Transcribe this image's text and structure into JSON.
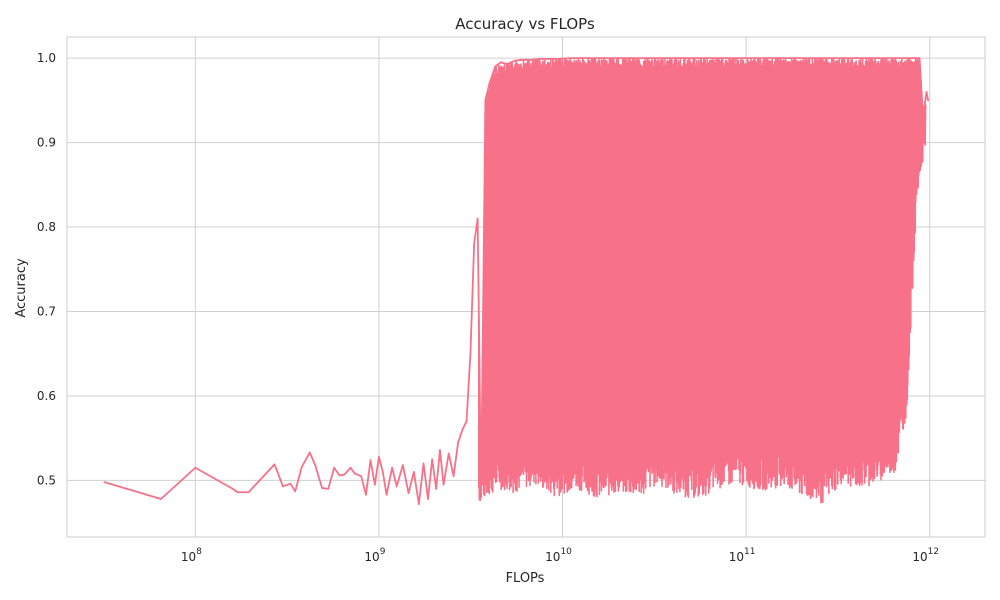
{
  "chart_data": {
    "type": "line",
    "title": "Accuracy vs FLOPs",
    "xlabel": "FLOPs",
    "ylabel": "Accuracy",
    "xscale": "log",
    "xlim": [
      20000000,
      2000000000000
    ],
    "ylim": [
      0.433,
      1.025
    ],
    "x_ticks": [
      {
        "value": 100000000,
        "base": "10",
        "exp": "8"
      },
      {
        "value": 1000000000,
        "base": "10",
        "exp": "9"
      },
      {
        "value": 10000000000,
        "base": "10",
        "exp": "10"
      },
      {
        "value": 100000000000,
        "base": "10",
        "exp": "11"
      },
      {
        "value": 1000000000000,
        "base": "10",
        "exp": "12"
      }
    ],
    "y_ticks": [
      {
        "value": 0.5,
        "label": "0.5"
      },
      {
        "value": 0.6,
        "label": "0.6"
      },
      {
        "value": 0.7,
        "label": "0.7"
      },
      {
        "value": 0.8,
        "label": "0.8"
      },
      {
        "value": 0.9,
        "label": "0.9"
      },
      {
        "value": 1.0,
        "label": "1.0"
      }
    ],
    "grid": true,
    "series": [
      {
        "color": "#f77189",
        "x": [
          32000000,
          65000000,
          100000000,
          160000000,
          170000000,
          195000000,
          270000000,
          300000000,
          330000000,
          350000000,
          380000000,
          420000000,
          450000000,
          490000000,
          530000000,
          570000000,
          610000000,
          650000000,
          700000000,
          740000000,
          800000000,
          850000000,
          900000000,
          950000000,
          1000000000,
          1050000000,
          1100000000,
          1180000000,
          1250000000,
          1350000000,
          1450000000,
          1550000000,
          1650000000,
          1750000000,
          1850000000,
          1950000000,
          2050000000,
          2150000000,
          2250000000,
          2400000000,
          2550000000,
          2700000000,
          2850000000,
          3000000000,
          3150000000,
          3300000000,
          3450000000,
          3600000000,
          3800000000,
          4000000000,
          4300000000,
          4600000000,
          5000000000,
          5500000000,
          6000000000,
          6800000000,
          7500000000,
          8500000000,
          9500000000,
          11000000000,
          12500000000,
          14000000000,
          16000000000,
          18000000000,
          20000000000,
          23000000000,
          26000000000,
          30000000000,
          34000000000,
          38000000000,
          43000000000,
          48000000000,
          55000000000,
          62000000000,
          70000000000,
          78000000000,
          88000000000,
          100000000000,
          115000000000,
          130000000000,
          150000000000,
          170000000000,
          195000000000,
          220000000000,
          250000000000,
          280000000000,
          320000000000,
          360000000000,
          410000000000,
          460000000000,
          520000000000,
          580000000000,
          650000000000,
          720000000000,
          780000000000,
          830000000000,
          880000000000,
          920000000000,
          960000000000,
          980000000000
        ],
        "y": [
          0.498,
          0.478,
          0.515,
          0.49,
          0.486,
          0.486,
          0.519,
          0.493,
          0.496,
          0.487,
          0.516,
          0.533,
          0.518,
          0.491,
          0.49,
          0.515,
          0.506,
          0.507,
          0.515,
          0.508,
          0.505,
          0.483,
          0.524,
          0.495,
          0.528,
          0.51,
          0.483,
          0.515,
          0.493,
          0.518,
          0.485,
          0.51,
          0.472,
          0.52,
          0.478,
          0.525,
          0.49,
          0.536,
          0.495,
          0.532,
          0.505,
          0.545,
          0.56,
          0.57,
          0.65,
          0.78,
          0.81,
          0.48,
          0.95,
          0.97,
          0.99,
          0.995,
          0.993,
          0.997,
          0.998,
          0.998,
          0.999,
          0.999,
          0.999,
          1.0,
          1.0,
          1.0,
          1.0,
          1.0,
          1.0,
          1.0,
          1.0,
          1.0,
          1.0,
          1.0,
          1.0,
          1.0,
          1.0,
          1.0,
          1.0,
          1.0,
          1.0,
          1.0,
          1.0,
          1.0,
          1.0,
          1.0,
          1.0,
          1.0,
          1.0,
          1.0,
          1.0,
          1.0,
          1.0,
          1.0,
          1.0,
          1.0,
          1.0,
          1.0,
          1.0,
          1.0,
          1.0,
          0.93,
          0.96,
          0.95
        ],
        "lower_envelope": {
          "x": [
            3500000000,
            4500000000,
            5500000000,
            7000000000,
            9000000000,
            12000000000,
            16000000000,
            20000000000,
            26000000000,
            33000000000,
            42000000000,
            55000000000,
            70000000000,
            90000000000,
            120000000000,
            160000000000,
            200000000000,
            260000000000,
            330000000000,
            420000000000,
            550000000000,
            650000000000,
            750000000000,
            850000000000,
            950000000000
          ],
          "y": [
            0.472,
            0.49,
            0.485,
            0.495,
            0.48,
            0.49,
            0.478,
            0.485,
            0.48,
            0.495,
            0.482,
            0.478,
            0.49,
            0.495,
            0.488,
            0.492,
            0.48,
            0.472,
            0.495,
            0.49,
            0.5,
            0.51,
            0.58,
            0.83,
            0.9
          ]
        }
      }
    ]
  }
}
